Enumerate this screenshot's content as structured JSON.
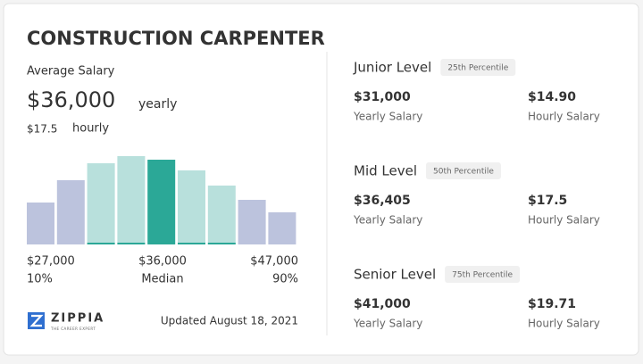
{
  "title": "CONSTRUCTION CARPENTER",
  "average": {
    "label": "Average Salary",
    "yearly": "$36,000",
    "yearly_unit": "yearly",
    "hourly": "$17.5",
    "hourly_unit": "hourly"
  },
  "histogram": {
    "values": [
      47,
      72,
      91,
      99,
      95,
      83,
      66,
      50,
      36
    ],
    "colors": [
      "#bcc3dd",
      "#bcc3dd",
      "#b8e0dc",
      "#b8e0dc",
      "#2ba897",
      "#b8e0dc",
      "#b8e0dc",
      "#bcc3dd",
      "#bcc3dd"
    ]
  },
  "range": {
    "low": "$27,000",
    "low_label": "10%",
    "mid": "$36,000",
    "mid_label": "Median",
    "high": "$47,000",
    "high_label": "90%"
  },
  "footer": {
    "brand": "ZIPPIA",
    "tagline": "THE CAREER EXPERT",
    "updated": "Updated August 18, 2021"
  },
  "levels": [
    {
      "name": "Junior Level",
      "percentile": "25th Percentile",
      "yearly": "$31,000",
      "yearly_label": "Yearly Salary",
      "hourly": "$14.90",
      "hourly_label": "Hourly Salary"
    },
    {
      "name": "Mid Level",
      "percentile": "50th Percentile",
      "yearly": "$36,405",
      "yearly_label": "Yearly Salary",
      "hourly": "$17.5",
      "hourly_label": "Hourly Salary"
    },
    {
      "name": "Senior Level",
      "percentile": "75th Percentile",
      "yearly": "$41,000",
      "yearly_label": "Yearly Salary",
      "hourly": "$19.71",
      "hourly_label": "Hourly Salary"
    }
  ]
}
